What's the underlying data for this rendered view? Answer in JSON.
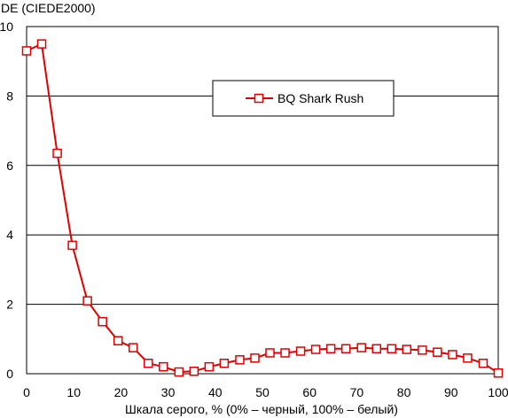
{
  "chart_data": {
    "type": "line",
    "title": "",
    "ylabel": "DE (CIEDE2000)",
    "xlabel": "Шкала серого, % (0% – черный, 100% – белый)",
    "xlim": [
      0,
      100
    ],
    "ylim": [
      0,
      10
    ],
    "x_ticks": [
      0,
      10,
      20,
      30,
      40,
      50,
      60,
      70,
      80,
      90,
      100
    ],
    "y_ticks": [
      0,
      2,
      4,
      6,
      8,
      10
    ],
    "grid": {
      "horizontal": true,
      "vertical": false
    },
    "legend": {
      "position": "top-center"
    },
    "series": [
      {
        "name": "BQ Shark Rush",
        "color": "#e00000",
        "marker": "square-hollow",
        "points": [
          [
            0,
            9.3
          ],
          [
            3.2,
            9.5
          ],
          [
            6.5,
            6.35
          ],
          [
            9.7,
            3.7
          ],
          [
            12.9,
            2.1
          ],
          [
            16.1,
            1.5
          ],
          [
            19.4,
            0.95
          ],
          [
            22.6,
            0.75
          ],
          [
            25.8,
            0.3
          ],
          [
            29.0,
            0.2
          ],
          [
            32.3,
            0.05
          ],
          [
            35.5,
            0.07
          ],
          [
            38.7,
            0.2
          ],
          [
            41.9,
            0.3
          ],
          [
            45.2,
            0.4
          ],
          [
            48.4,
            0.45
          ],
          [
            51.6,
            0.6
          ],
          [
            54.8,
            0.6
          ],
          [
            58.1,
            0.65
          ],
          [
            61.3,
            0.7
          ],
          [
            64.5,
            0.72
          ],
          [
            67.7,
            0.72
          ],
          [
            71.0,
            0.75
          ],
          [
            74.2,
            0.72
          ],
          [
            77.4,
            0.72
          ],
          [
            80.6,
            0.7
          ],
          [
            83.9,
            0.68
          ],
          [
            87.1,
            0.62
          ],
          [
            90.3,
            0.55
          ],
          [
            93.5,
            0.45
          ],
          [
            96.8,
            0.3
          ],
          [
            100,
            0.02
          ]
        ]
      }
    ]
  }
}
